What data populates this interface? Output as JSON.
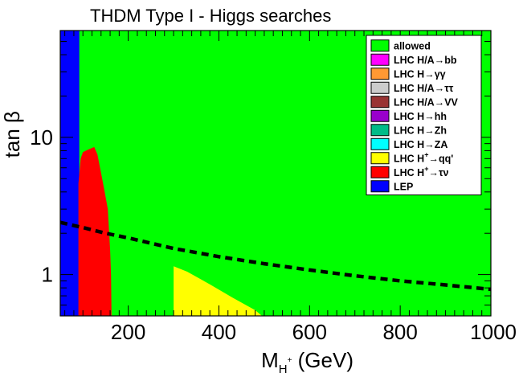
{
  "chart_data": {
    "type": "area",
    "title": "THDM Type I - Higgs searches",
    "xlabel": {
      "main": "M",
      "sub": "H",
      "sup": "+",
      "unit": " (GeV)"
    },
    "ylabel": "tan β",
    "xlim": [
      50,
      1000
    ],
    "ylim": [
      0.5,
      60
    ],
    "yscale": "log",
    "grid": false,
    "legend_position": "top-right",
    "x_ticks": [
      200,
      400,
      600,
      800,
      1000
    ],
    "x_tick_labels": [
      "200",
      "400",
      "600",
      "800",
      "1000"
    ],
    "y_ticks": [
      1,
      10
    ],
    "y_tick_labels": [
      "1",
      "10"
    ],
    "background_region": {
      "name": "allowed",
      "color": "#00ff00"
    },
    "legend": [
      {
        "key": "allowed",
        "label": "allowed",
        "color": "#00ff00"
      },
      {
        "key": "hbb",
        "label": "LHC H/A→bb",
        "color": "#ff00ff"
      },
      {
        "key": "hgg",
        "label": "LHC H→γγ",
        "color": "#ff9933"
      },
      {
        "key": "htautau",
        "label": "LHC H/A→ττ",
        "color": "#cccccc"
      },
      {
        "key": "hvv",
        "label": "LHC H/A→VV",
        "color": "#993333"
      },
      {
        "key": "hhh",
        "label": "LHC H→hh",
        "color": "#9900cc"
      },
      {
        "key": "hzh",
        "label": "LHC H→Zh",
        "color": "#00bb88"
      },
      {
        "key": "hza",
        "label": "LHC H→ZA",
        "color": "#00ffff"
      },
      {
        "key": "hqq",
        "label": "LHC H+→qq'",
        "color": "#ffff00",
        "rich": {
          "pre": "LHC H",
          "sup": "+",
          "post": "→qq'"
        }
      },
      {
        "key": "htaunu",
        "label": "LHC H+→τν",
        "color": "#ff0000",
        "rich": {
          "pre": "LHC H",
          "sup": "+",
          "post": "→τν"
        }
      },
      {
        "key": "lep",
        "label": "LEP",
        "color": "#0000ff"
      }
    ],
    "regions": [
      {
        "name": "LEP",
        "color": "#0000ff",
        "points": [
          [
            50,
            0.5
          ],
          [
            50,
            60
          ],
          [
            92,
            60
          ],
          [
            92,
            0.5
          ]
        ]
      },
      {
        "name": "LHC H+→τν",
        "color": "#ff0000",
        "points": [
          [
            90,
            0.5
          ],
          [
            90,
            4.6
          ],
          [
            95,
            7.0
          ],
          [
            100,
            7.8
          ],
          [
            110,
            8.1
          ],
          [
            125,
            8.5
          ],
          [
            132,
            7.5
          ],
          [
            140,
            5.5
          ],
          [
            148,
            4.0
          ],
          [
            155,
            3.0
          ],
          [
            158,
            2.0
          ],
          [
            160,
            1.5
          ],
          [
            162,
            1.0
          ],
          [
            163,
            0.5
          ]
        ]
      },
      {
        "name": "LHC H+→qq'",
        "color": "#ffff00",
        "points": [
          [
            300,
            0.5
          ],
          [
            300,
            1.15
          ],
          [
            330,
            1.05
          ],
          [
            380,
            0.85
          ],
          [
            430,
            0.68
          ],
          [
            480,
            0.55
          ],
          [
            495,
            0.5
          ]
        ]
      }
    ],
    "series": [
      {
        "style": "dashed",
        "color": "#000000",
        "x": [
          50,
          100,
          150,
          200,
          300,
          400,
          500,
          600,
          700,
          800,
          900,
          1000
        ],
        "y": [
          2.4,
          2.2,
          2.0,
          1.85,
          1.55,
          1.35,
          1.2,
          1.08,
          0.98,
          0.9,
          0.84,
          0.78
        ]
      }
    ]
  }
}
